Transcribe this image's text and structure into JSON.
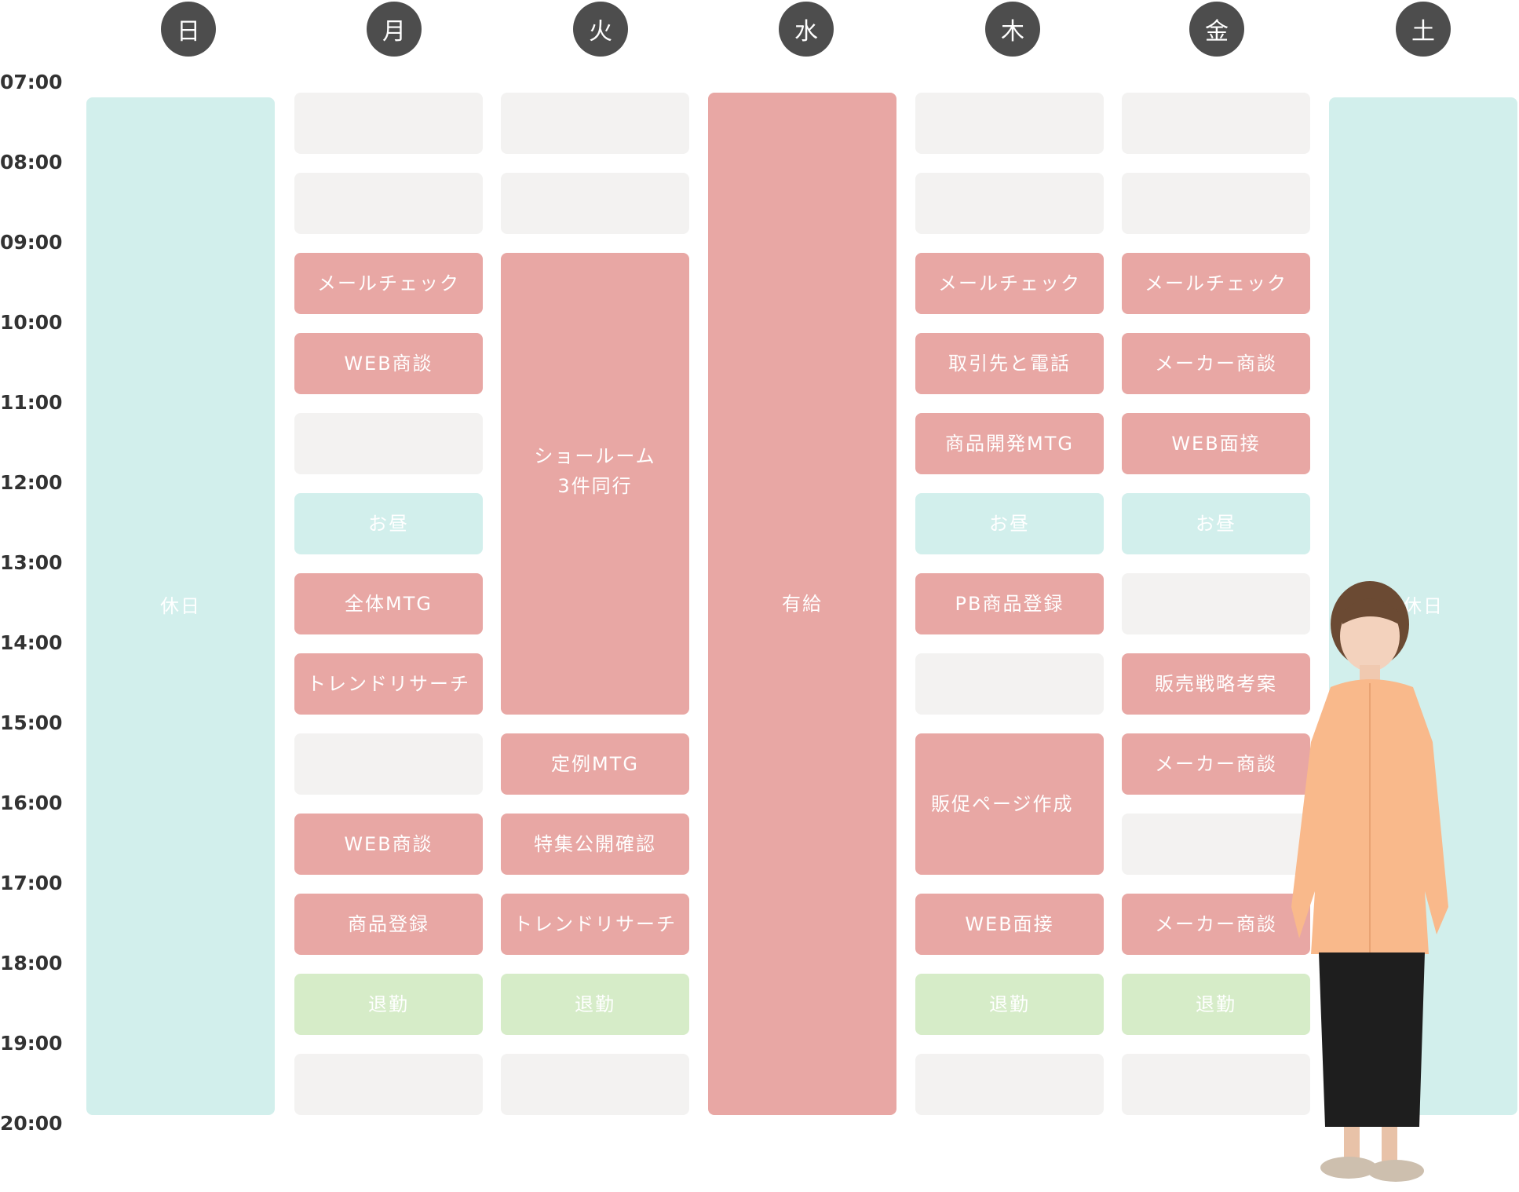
{
  "days": [
    {
      "key": "sun",
      "label": "日"
    },
    {
      "key": "mon",
      "label": "月"
    },
    {
      "key": "tue",
      "label": "火"
    },
    {
      "key": "wed",
      "label": "水"
    },
    {
      "key": "thu",
      "label": "木"
    },
    {
      "key": "fri",
      "label": "金"
    },
    {
      "key": "sat",
      "label": "土"
    }
  ],
  "times": [
    "07:00",
    "08:00",
    "09:00",
    "10:00",
    "11:00",
    "12:00",
    "13:00",
    "14:00",
    "15:00",
    "16:00",
    "17:00",
    "18:00",
    "19:00",
    "20:00"
  ],
  "colors": {
    "empty": "#f3f2f1",
    "work": "#e8a7a4",
    "lunch": "#d2efec",
    "leave": "#d6ecc8",
    "holiday": "#d2efec",
    "header": "#4d4d4d"
  },
  "schedule": {
    "sun": [
      {
        "start": 7,
        "end": 20,
        "type": "holiday",
        "text": "休日"
      }
    ],
    "mon": [
      {
        "start": 7,
        "end": 8,
        "type": "empty",
        "text": ""
      },
      {
        "start": 8,
        "end": 9,
        "type": "empty",
        "text": ""
      },
      {
        "start": 9,
        "end": 10,
        "type": "work",
        "text": "メールチェック"
      },
      {
        "start": 10,
        "end": 11,
        "type": "work",
        "text": "WEB商談"
      },
      {
        "start": 11,
        "end": 12,
        "type": "empty",
        "text": ""
      },
      {
        "start": 12,
        "end": 13,
        "type": "lunch",
        "text": "お昼"
      },
      {
        "start": 13,
        "end": 14,
        "type": "work",
        "text": "全体MTG"
      },
      {
        "start": 14,
        "end": 15,
        "type": "work",
        "text": "トレンドリサーチ"
      },
      {
        "start": 15,
        "end": 16,
        "type": "empty",
        "text": ""
      },
      {
        "start": 16,
        "end": 17,
        "type": "work",
        "text": "WEB商談"
      },
      {
        "start": 17,
        "end": 18,
        "type": "work",
        "text": "商品登録"
      },
      {
        "start": 18,
        "end": 19,
        "type": "leave",
        "text": "退勤"
      },
      {
        "start": 19,
        "end": 20,
        "type": "empty",
        "text": ""
      }
    ],
    "tue": [
      {
        "start": 7,
        "end": 8,
        "type": "empty",
        "text": ""
      },
      {
        "start": 8,
        "end": 9,
        "type": "empty",
        "text": ""
      },
      {
        "start": 9,
        "end": 15,
        "type": "work",
        "text": "ショールーム\n3件同行",
        "valign": "upper"
      },
      {
        "start": 15,
        "end": 16,
        "type": "work",
        "text": "定例MTG"
      },
      {
        "start": 16,
        "end": 17,
        "type": "work",
        "text": "特集公開確認"
      },
      {
        "start": 17,
        "end": 18,
        "type": "work",
        "text": "トレンドリサーチ"
      },
      {
        "start": 18,
        "end": 19,
        "type": "leave",
        "text": "退勤"
      },
      {
        "start": 19,
        "end": 20,
        "type": "empty",
        "text": ""
      }
    ],
    "wed": [
      {
        "start": 7,
        "end": 20,
        "type": "work",
        "text": "有給"
      }
    ],
    "thu": [
      {
        "start": 7,
        "end": 8,
        "type": "empty",
        "text": ""
      },
      {
        "start": 8,
        "end": 9,
        "type": "empty",
        "text": ""
      },
      {
        "start": 9,
        "end": 10,
        "type": "work",
        "text": "メールチェック"
      },
      {
        "start": 10,
        "end": 11,
        "type": "work",
        "text": "取引先と電話"
      },
      {
        "start": 11,
        "end": 12,
        "type": "work",
        "text": "商品開発MTG"
      },
      {
        "start": 12,
        "end": 13,
        "type": "lunch",
        "text": "お昼"
      },
      {
        "start": 13,
        "end": 14,
        "type": "work",
        "text": "PB商品登録"
      },
      {
        "start": 14,
        "end": 15,
        "type": "empty",
        "text": ""
      },
      {
        "start": 15,
        "end": 17,
        "type": "work",
        "text": "販促ページ作成",
        "align": "left"
      },
      {
        "start": 17,
        "end": 18,
        "type": "work",
        "text": "WEB面接"
      },
      {
        "start": 18,
        "end": 19,
        "type": "leave",
        "text": "退勤"
      },
      {
        "start": 19,
        "end": 20,
        "type": "empty",
        "text": ""
      }
    ],
    "fri": [
      {
        "start": 7,
        "end": 8,
        "type": "empty",
        "text": ""
      },
      {
        "start": 8,
        "end": 9,
        "type": "empty",
        "text": ""
      },
      {
        "start": 9,
        "end": 10,
        "type": "work",
        "text": "メールチェック"
      },
      {
        "start": 10,
        "end": 11,
        "type": "work",
        "text": "メーカー商談"
      },
      {
        "start": 11,
        "end": 12,
        "type": "work",
        "text": "WEB面接"
      },
      {
        "start": 12,
        "end": 13,
        "type": "lunch",
        "text": "お昼"
      },
      {
        "start": 13,
        "end": 14,
        "type": "empty",
        "text": ""
      },
      {
        "start": 14,
        "end": 15,
        "type": "work",
        "text": "販売戦略考案"
      },
      {
        "start": 15,
        "end": 16,
        "type": "work",
        "text": "メーカー商談"
      },
      {
        "start": 16,
        "end": 17,
        "type": "empty",
        "text": ""
      },
      {
        "start": 17,
        "end": 18,
        "type": "work",
        "text": "メーカー商談"
      },
      {
        "start": 18,
        "end": 19,
        "type": "leave",
        "text": "退勤"
      },
      {
        "start": 19,
        "end": 20,
        "type": "empty",
        "text": ""
      }
    ],
    "sat": [
      {
        "start": 7,
        "end": 20,
        "type": "holiday",
        "text": "休日"
      }
    ]
  }
}
